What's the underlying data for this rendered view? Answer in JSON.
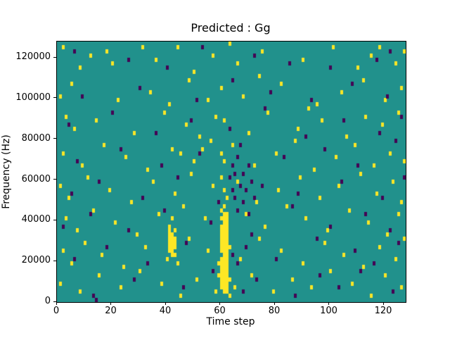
{
  "figure": {
    "title": "Predicted : Gg",
    "xlabel": "Time step",
    "ylabel": "Frequency (Hz)"
  },
  "chart_data": {
    "type": "heatmap",
    "title": "Predicted : Gg",
    "xlabel": "Time step",
    "ylabel": "Frequency (Hz)",
    "x_range": [
      0,
      128
    ],
    "y_range": [
      0,
      128000
    ],
    "x_ticks": [
      0,
      20,
      40,
      60,
      80,
      100,
      120
    ],
    "y_ticks": [
      0,
      20000,
      40000,
      60000,
      80000,
      100000,
      120000
    ],
    "grid_cols": 128,
    "grid_rows": 64,
    "cell_width_timesteps": 1,
    "cell_height_hz": 2000,
    "legend": "none",
    "grid": false,
    "colors": {
      "background": "#21918c",
      "high": "#fde725",
      "low": "#440154"
    },
    "cells_high": [
      [
        2,
        62
      ],
      [
        12,
        60
      ],
      [
        18,
        61
      ],
      [
        20,
        58
      ],
      [
        31,
        62
      ],
      [
        36,
        59
      ],
      [
        44,
        62
      ],
      [
        57,
        60
      ],
      [
        63,
        63
      ],
      [
        66,
        58
      ],
      [
        75,
        61
      ],
      [
        90,
        59
      ],
      [
        101,
        62
      ],
      [
        110,
        57
      ],
      [
        115,
        60
      ],
      [
        118,
        62
      ],
      [
        124,
        58
      ],
      [
        127,
        61
      ],
      [
        8,
        57
      ],
      [
        50,
        56
      ],
      [
        1,
        50
      ],
      [
        5,
        53
      ],
      [
        22,
        49
      ],
      [
        34,
        51
      ],
      [
        48,
        54
      ],
      [
        55,
        49
      ],
      [
        60,
        52
      ],
      [
        68,
        50
      ],
      [
        82,
        53
      ],
      [
        95,
        48
      ],
      [
        104,
        51
      ],
      [
        112,
        54
      ],
      [
        120,
        49
      ],
      [
        126,
        52
      ],
      [
        41,
        48
      ],
      [
        74,
        55
      ],
      [
        3,
        45
      ],
      [
        6,
        42
      ],
      [
        14,
        44
      ],
      [
        28,
        41
      ],
      [
        39,
        46
      ],
      [
        47,
        43
      ],
      [
        52,
        40
      ],
      [
        58,
        45
      ],
      [
        61,
        44
      ],
      [
        70,
        41
      ],
      [
        77,
        46
      ],
      [
        88,
        42
      ],
      [
        97,
        44
      ],
      [
        106,
        40
      ],
      [
        113,
        45
      ],
      [
        119,
        43
      ],
      [
        125,
        46
      ],
      [
        92,
        47
      ],
      [
        2,
        36
      ],
      [
        9,
        33
      ],
      [
        17,
        38
      ],
      [
        25,
        35
      ],
      [
        33,
        32
      ],
      [
        42,
        37
      ],
      [
        50,
        34
      ],
      [
        56,
        39
      ],
      [
        60,
        36
      ],
      [
        61,
        34
      ],
      [
        64,
        38
      ],
      [
        72,
        33
      ],
      [
        80,
        36
      ],
      [
        87,
        39
      ],
      [
        94,
        32
      ],
      [
        102,
        35
      ],
      [
        109,
        38
      ],
      [
        116,
        33
      ],
      [
        122,
        36
      ],
      [
        127,
        34
      ],
      [
        45,
        36
      ],
      [
        53,
        37
      ],
      [
        1,
        28
      ],
      [
        4,
        25
      ],
      [
        11,
        30
      ],
      [
        19,
        27
      ],
      [
        27,
        24
      ],
      [
        35,
        29
      ],
      [
        43,
        26
      ],
      [
        49,
        31
      ],
      [
        57,
        28
      ],
      [
        60,
        30
      ],
      [
        61,
        27
      ],
      [
        62,
        25
      ],
      [
        66,
        29
      ],
      [
        73,
        24
      ],
      [
        81,
        27
      ],
      [
        89,
        30
      ],
      [
        96,
        25
      ],
      [
        103,
        28
      ],
      [
        111,
        31
      ],
      [
        117,
        26
      ],
      [
        123,
        29
      ],
      [
        126,
        24
      ],
      [
        3,
        20
      ],
      [
        7,
        17
      ],
      [
        13,
        22
      ],
      [
        21,
        19
      ],
      [
        29,
        16
      ],
      [
        37,
        21
      ],
      [
        41,
        18
      ],
      [
        42,
        20
      ],
      [
        43,
        17
      ],
      [
        46,
        23
      ],
      [
        54,
        20
      ],
      [
        60,
        22
      ],
      [
        61,
        19
      ],
      [
        62,
        16
      ],
      [
        69,
        21
      ],
      [
        76,
        18
      ],
      [
        84,
        23
      ],
      [
        91,
        20
      ],
      [
        99,
        17
      ],
      [
        107,
        22
      ],
      [
        114,
        19
      ],
      [
        121,
        16
      ],
      [
        125,
        21
      ],
      [
        2,
        12
      ],
      [
        5,
        9
      ],
      [
        10,
        14
      ],
      [
        16,
        11
      ],
      [
        24,
        8
      ],
      [
        32,
        13
      ],
      [
        40,
        10
      ],
      [
        41,
        12
      ],
      [
        42,
        14
      ],
      [
        43,
        11
      ],
      [
        44,
        9
      ],
      [
        48,
        15
      ],
      [
        55,
        12
      ],
      [
        59,
        9
      ],
      [
        60,
        14
      ],
      [
        61,
        11
      ],
      [
        62,
        8
      ],
      [
        63,
        13
      ],
      [
        67,
        10
      ],
      [
        74,
        15
      ],
      [
        82,
        12
      ],
      [
        90,
        9
      ],
      [
        98,
        14
      ],
      [
        105,
        11
      ],
      [
        112,
        8
      ],
      [
        118,
        13
      ],
      [
        124,
        10
      ],
      [
        127,
        15
      ],
      [
        1,
        4
      ],
      [
        8,
        2
      ],
      [
        15,
        6
      ],
      [
        23,
        3
      ],
      [
        30,
        7
      ],
      [
        38,
        4
      ],
      [
        45,
        1
      ],
      [
        51,
        5
      ],
      [
        58,
        2
      ],
      [
        59,
        6
      ],
      [
        60,
        3
      ],
      [
        60,
        5
      ],
      [
        61,
        2
      ],
      [
        61,
        6
      ],
      [
        62,
        4
      ],
      [
        62,
        7
      ],
      [
        63,
        1
      ],
      [
        63,
        5
      ],
      [
        65,
        3
      ],
      [
        71,
        6
      ],
      [
        79,
        2
      ],
      [
        86,
        5
      ],
      [
        93,
        3
      ],
      [
        100,
        7
      ],
      [
        108,
        4
      ],
      [
        115,
        1
      ],
      [
        120,
        6
      ],
      [
        126,
        3
      ],
      [
        60,
        4
      ],
      [
        60,
        6
      ],
      [
        60,
        7
      ],
      [
        60,
        8
      ],
      [
        60,
        9
      ],
      [
        60,
        10
      ],
      [
        60,
        12
      ],
      [
        60,
        13
      ],
      [
        60,
        15
      ],
      [
        60,
        16
      ],
      [
        60,
        17
      ],
      [
        60,
        18
      ],
      [
        60,
        20
      ],
      [
        61,
        3
      ],
      [
        61,
        4
      ],
      [
        61,
        5
      ],
      [
        61,
        7
      ],
      [
        61,
        8
      ],
      [
        61,
        9
      ],
      [
        61,
        10
      ],
      [
        61,
        12
      ],
      [
        61,
        13
      ],
      [
        61,
        14
      ],
      [
        61,
        15
      ],
      [
        61,
        16
      ],
      [
        61,
        17
      ],
      [
        61,
        18
      ],
      [
        61,
        20
      ],
      [
        61,
        21
      ],
      [
        61,
        23
      ],
      [
        62,
        2
      ],
      [
        62,
        3
      ],
      [
        62,
        5
      ],
      [
        62,
        6
      ],
      [
        62,
        9
      ],
      [
        62,
        10
      ],
      [
        62,
        11
      ],
      [
        62,
        12
      ],
      [
        62,
        13
      ],
      [
        62,
        14
      ],
      [
        62,
        15
      ],
      [
        62,
        17
      ],
      [
        62,
        18
      ],
      [
        62,
        19
      ],
      [
        62,
        20
      ],
      [
        62,
        21
      ],
      [
        41,
        13
      ],
      [
        41,
        14
      ],
      [
        41,
        15
      ],
      [
        41,
        16
      ],
      [
        41,
        17
      ],
      [
        42,
        11
      ],
      [
        42,
        12
      ],
      [
        42,
        13
      ],
      [
        42,
        15
      ],
      [
        42,
        16
      ],
      [
        43,
        13
      ],
      [
        43,
        14
      ],
      [
        43,
        15
      ]
    ],
    "cells_low": [
      [
        63,
        30
      ],
      [
        64,
        27
      ],
      [
        64,
        33
      ],
      [
        65,
        25
      ],
      [
        65,
        31
      ],
      [
        66,
        22
      ],
      [
        66,
        35
      ],
      [
        67,
        28
      ],
      [
        68,
        24
      ],
      [
        68,
        31
      ],
      [
        69,
        27
      ],
      [
        70,
        33
      ],
      [
        70,
        21
      ],
      [
        71,
        29
      ],
      [
        72,
        25
      ],
      [
        6,
        61
      ],
      [
        26,
        59
      ],
      [
        40,
        57
      ],
      [
        53,
        62
      ],
      [
        72,
        60
      ],
      [
        85,
        58
      ],
      [
        100,
        57
      ],
      [
        117,
        59
      ],
      [
        122,
        61
      ],
      [
        9,
        50
      ],
      [
        30,
        52
      ],
      [
        51,
        49
      ],
      [
        64,
        54
      ],
      [
        78,
        51
      ],
      [
        93,
        49
      ],
      [
        108,
        53
      ],
      [
        121,
        50
      ],
      [
        4,
        43
      ],
      [
        20,
        46
      ],
      [
        36,
        41
      ],
      [
        49,
        44
      ],
      [
        63,
        42
      ],
      [
        76,
        47
      ],
      [
        91,
        40
      ],
      [
        105,
        44
      ],
      [
        118,
        41
      ],
      [
        126,
        45
      ],
      [
        7,
        34
      ],
      [
        23,
        37
      ],
      [
        38,
        33
      ],
      [
        52,
        36
      ],
      [
        67,
        38
      ],
      [
        83,
        35
      ],
      [
        98,
        37
      ],
      [
        110,
        33
      ],
      [
        124,
        39
      ],
      [
        5,
        26
      ],
      [
        15,
        29
      ],
      [
        31,
        25
      ],
      [
        44,
        30
      ],
      [
        59,
        24
      ],
      [
        75,
        28
      ],
      [
        88,
        26
      ],
      [
        104,
        29
      ],
      [
        119,
        25
      ],
      [
        127,
        30
      ],
      [
        2,
        18
      ],
      [
        12,
        21
      ],
      [
        26,
        17
      ],
      [
        39,
        22
      ],
      [
        56,
        19
      ],
      [
        71,
        16
      ],
      [
        86,
        23
      ],
      [
        100,
        18
      ],
      [
        113,
        21
      ],
      [
        122,
        17
      ],
      [
        6,
        10
      ],
      [
        18,
        13
      ],
      [
        33,
        9
      ],
      [
        47,
        14
      ],
      [
        64,
        11
      ],
      [
        66,
        9
      ],
      [
        69,
        13
      ],
      [
        80,
        10
      ],
      [
        95,
        15
      ],
      [
        109,
        12
      ],
      [
        116,
        9
      ],
      [
        125,
        14
      ],
      [
        13,
        1
      ],
      [
        14,
        0
      ],
      [
        28,
        5
      ],
      [
        46,
        3
      ],
      [
        57,
        7
      ],
      [
        68,
        2
      ],
      [
        73,
        5
      ],
      [
        87,
        1
      ],
      [
        96,
        6
      ],
      [
        103,
        3
      ],
      [
        111,
        7
      ],
      [
        123,
        2
      ]
    ]
  }
}
